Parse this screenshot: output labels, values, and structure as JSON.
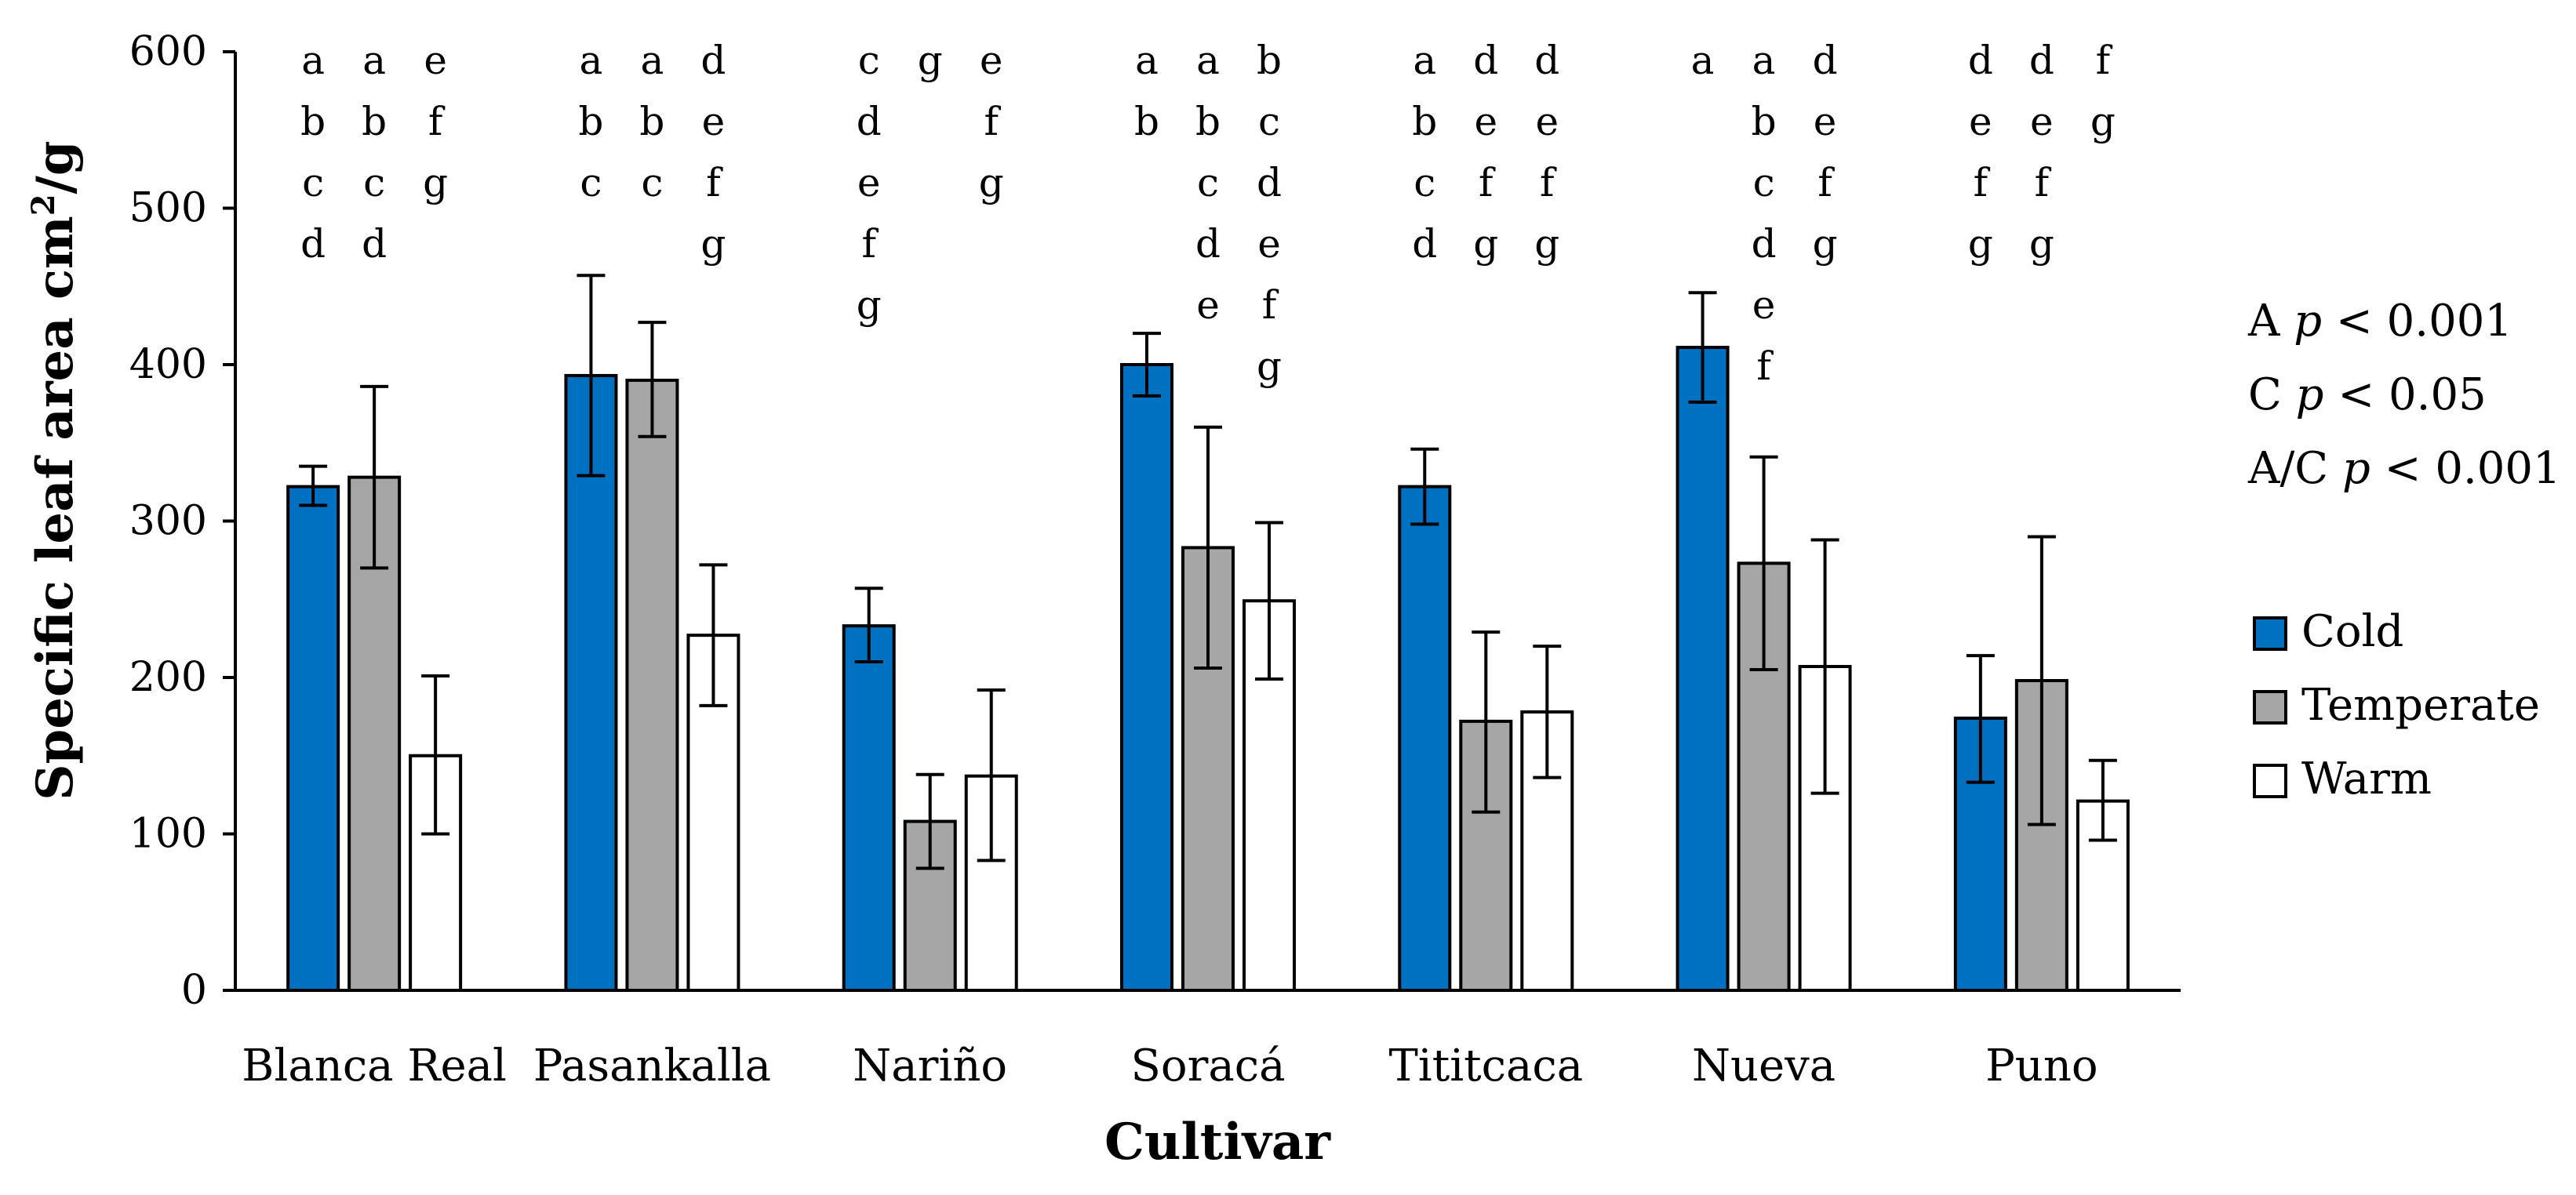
{
  "chart_data": {
    "type": "bar",
    "title": "",
    "xlabel": "Cultivar",
    "ylabel": "Specific leaf area cm2/g",
    "ylabel_main": "Specific leaf area cm",
    "ylabel_sup": "2",
    "ylabel_tail": "/g",
    "ylim": [
      0,
      600
    ],
    "yticks": [
      "0",
      "100",
      "200",
      "300",
      "400",
      "500",
      "600"
    ],
    "grid": false,
    "legend_position": "right",
    "categories": [
      "Blanca Real",
      "Pasankalla",
      "Nariño",
      "Soracá",
      "Tititcaca",
      "Nueva",
      "Puno"
    ],
    "series": [
      {
        "name": "Cold",
        "color": "#0070C0",
        "values": [
          322,
          393,
          233,
          400,
          322,
          411,
          174
        ],
        "err_low": [
          310,
          329,
          210,
          380,
          298,
          376,
          133
        ],
        "err_high": [
          335,
          457,
          257,
          420,
          346,
          446,
          214
        ],
        "letters": [
          [
            "a",
            "b",
            "c",
            "d"
          ],
          [
            "a",
            "b",
            "c"
          ],
          [
            "c",
            "d",
            "e",
            "f",
            "g"
          ],
          [
            "a",
            "b"
          ],
          [
            "a",
            "b",
            "c",
            "d"
          ],
          [
            "a"
          ],
          [
            "d",
            "e",
            "f",
            "g"
          ]
        ]
      },
      {
        "name": "Temperate",
        "color": "#A6A6A6",
        "values": [
          328,
          390,
          108,
          283,
          172,
          273,
          198
        ],
        "err_low": [
          270,
          354,
          78,
          206,
          114,
          205,
          106
        ],
        "err_high": [
          386,
          427,
          138,
          360,
          229,
          341,
          290
        ],
        "letters": [
          [
            "a",
            "b",
            "c",
            "d"
          ],
          [
            "a",
            "b",
            "c"
          ],
          [
            "g"
          ],
          [
            "a",
            "b",
            "c",
            "d",
            "e"
          ],
          [
            "d",
            "e",
            "f",
            "g"
          ],
          [
            "a",
            "b",
            "c",
            "d",
            "e",
            "f"
          ],
          [
            "d",
            "e",
            "f",
            "g"
          ]
        ]
      },
      {
        "name": "Warm",
        "color": "#FFFFFF",
        "values": [
          150,
          227,
          137,
          249,
          178,
          207,
          121
        ],
        "err_low": [
          100,
          182,
          83,
          199,
          136,
          126,
          96
        ],
        "err_high": [
          201,
          272,
          192,
          299,
          220,
          288,
          147
        ],
        "letters": [
          [
            "e",
            "f",
            "g"
          ],
          [
            "d",
            "e",
            "f",
            "g"
          ],
          [
            "e",
            "f",
            "g"
          ],
          [
            "b",
            "c",
            "d",
            "e",
            "f",
            "g"
          ],
          [
            "d",
            "e",
            "f",
            "g"
          ],
          [
            "d",
            "e",
            "f",
            "g"
          ],
          [
            "f",
            "g"
          ]
        ]
      }
    ],
    "annotations": [
      {
        "factor": "A",
        "p": "p",
        "rel": "< 0.001"
      },
      {
        "factor": "C",
        "p": "p",
        "rel": "< 0.05"
      },
      {
        "factor": "A/C",
        "p": "p",
        "rel": "< 0.001"
      }
    ]
  }
}
